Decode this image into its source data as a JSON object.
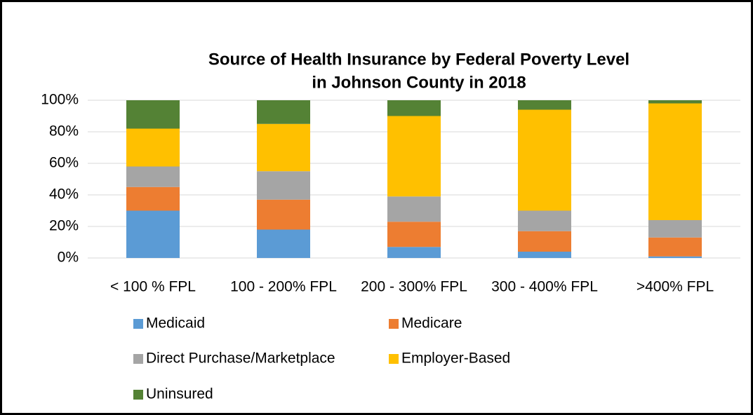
{
  "chart_data": {
    "type": "stacked_bar",
    "title": [
      "Source of Health Insurance by Federal Poverty Level",
      "in Johnson County in 2018"
    ],
    "categories": [
      "< 100 % FPL",
      "100 - 200% FPL",
      "200 - 300% FPL",
      "300 - 400% FPL",
      ">400% FPL"
    ],
    "series": [
      {
        "name": "Medicaid",
        "color": "#5b9bd5",
        "values": [
          30,
          18,
          7,
          4,
          1
        ]
      },
      {
        "name": "Medicare",
        "color": "#ed7d31",
        "values": [
          15,
          19,
          16,
          13,
          12
        ]
      },
      {
        "name": "Direct Purchase/Marketplace",
        "color": "#a5a5a5",
        "values": [
          13,
          18,
          16,
          13,
          11
        ]
      },
      {
        "name": "Employer-Based",
        "color": "#ffc000",
        "values": [
          24,
          30,
          51,
          64,
          74
        ]
      },
      {
        "name": "Uninsured",
        "color": "#548235",
        "values": [
          18,
          15,
          10,
          6,
          2
        ]
      }
    ],
    "ylim": [
      0,
      100
    ],
    "yticks": [
      {
        "value": 0,
        "label": "0%"
      },
      {
        "value": 20,
        "label": "20%"
      },
      {
        "value": 40,
        "label": "40%"
      },
      {
        "value": 60,
        "label": "60%"
      },
      {
        "value": 80,
        "label": "80%"
      },
      {
        "value": 100,
        "label": "100%"
      }
    ],
    "grid": true,
    "legend": "bottom"
  }
}
